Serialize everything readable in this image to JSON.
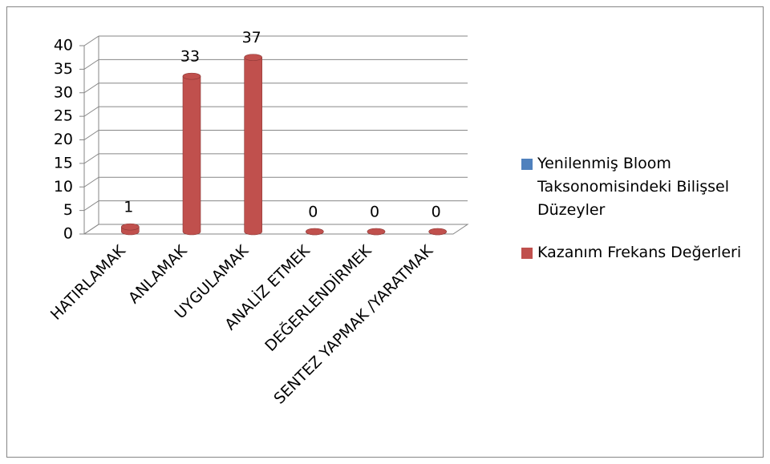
{
  "chart_data": {
    "type": "bar3d",
    "categories": [
      "HATIRLAMAK",
      "ANLAMAK",
      "UYGULAMAK",
      "ANALİZ ETMEK",
      "DEĞERLENDİRMEK",
      "SENTEZ YAPMAK /YARATMAK"
    ],
    "series": [
      {
        "name": "Yenilenmiş Bloom Taksonomisindeki Bilişsel Düzeyler",
        "color": "#4f81bd",
        "values": [
          null,
          null,
          null,
          null,
          null,
          null
        ]
      },
      {
        "name": "Kazanım Frekans Değerleri",
        "color": "#c0504d",
        "values": [
          1,
          33,
          37,
          0,
          0,
          0
        ]
      }
    ],
    "ylim": [
      0,
      40
    ],
    "yticks": [
      0,
      5,
      10,
      15,
      20,
      25,
      30,
      35,
      40
    ],
    "grid": true,
    "legend": "right"
  }
}
